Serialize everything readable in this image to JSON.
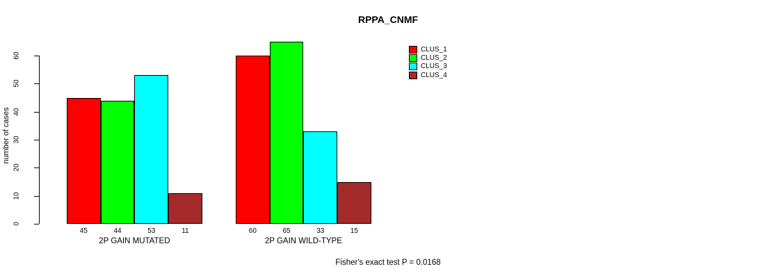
{
  "title": "RPPA_CNMF",
  "footer": "Fisher's exact test P = 0.0168",
  "chart_data": {
    "type": "bar",
    "title": "RPPA_CNMF",
    "xlabel": "",
    "ylabel": "number of cases",
    "categories": [
      "2P GAIN MUTATED",
      "2P GAIN WILD-TYPE"
    ],
    "series": [
      {
        "name": "CLUS_1",
        "color": "#ff0000",
        "values": [
          45,
          60
        ]
      },
      {
        "name": "CLUS_2",
        "color": "#00ff00",
        "values": [
          44,
          65
        ]
      },
      {
        "name": "CLUS_3",
        "color": "#00ffff",
        "values": [
          53,
          33
        ]
      },
      {
        "name": "CLUS_4",
        "color": "#a52a2a",
        "values": [
          11,
          15
        ]
      }
    ],
    "yticks": [
      0,
      10,
      20,
      30,
      40,
      50,
      60
    ],
    "ylim": [
      0,
      65
    ],
    "grid": false,
    "bar_value_labels": true,
    "legend_position": "top-right",
    "legend_entries": [
      "CLUS_1",
      "CLUS_2",
      "CLUS_3",
      "CLUS_4"
    ],
    "annotation": "Fisher's exact test P = 0.0168"
  }
}
